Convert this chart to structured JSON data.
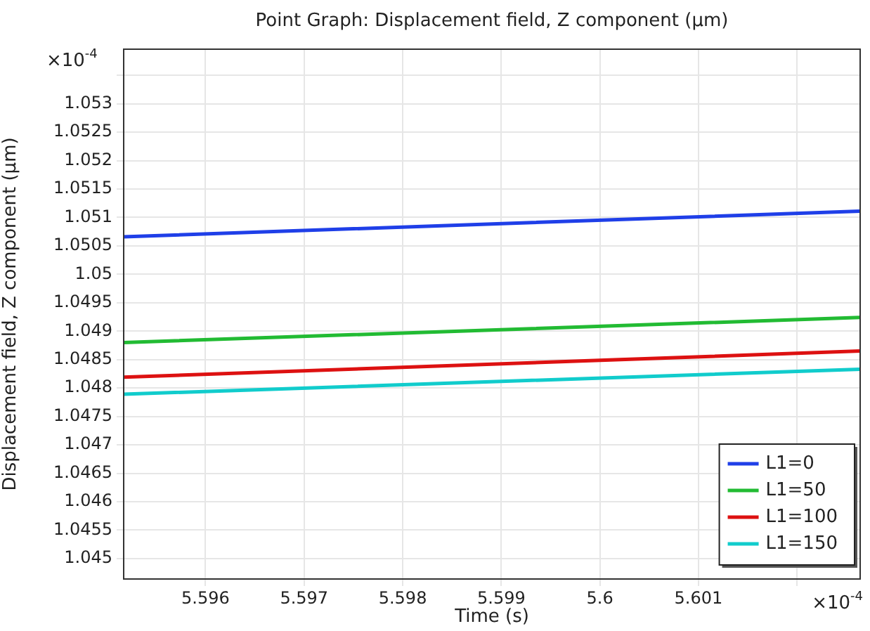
{
  "chart_data": {
    "type": "line",
    "title": "Point Graph: Displacement field, Z component (µm)",
    "xlabel": "Time (s)",
    "ylabel": "Displacement field, Z component (µm)",
    "annotations": [
      "×10$^{-4}$",
      "×10$^{-4}$"
    ],
    "x": [
      5.59517,
      5.60264
    ],
    "series": [
      {
        "name": "L1=0",
        "color": "#1f3fe8",
        "values": [
          1.05066,
          1.05111
        ]
      },
      {
        "name": "L1=50",
        "color": "#22bb33",
        "values": [
          1.0488,
          1.04924
        ]
      },
      {
        "name": "L1=100",
        "color": "#dd1111",
        "values": [
          1.04819,
          1.04865
        ]
      },
      {
        "name": "L1=150",
        "color": "#11cccc",
        "values": [
          1.04789,
          1.04833
        ]
      }
    ],
    "xlim": [
      5.59517,
      5.60264
    ],
    "xticks": [
      5.596,
      5.597,
      5.598,
      5.599,
      5.6,
      5.601,
      {
        "value": 5.602,
        "label": null
      }
    ],
    "ylim": [
      1.04464,
      1.05396
    ],
    "yticks": [
      1.045,
      1.0455,
      1.046,
      1.0465,
      1.047,
      1.0475,
      1.048,
      1.0485,
      1.049,
      1.0495,
      1.05,
      1.0505,
      1.051,
      1.0515,
      1.052,
      1.0525,
      1.053,
      {
        "value": 1.0535,
        "label": null
      }
    ],
    "grid": true,
    "legend": "bottom right",
    "marker": "none",
    "line_style": "solid"
  }
}
